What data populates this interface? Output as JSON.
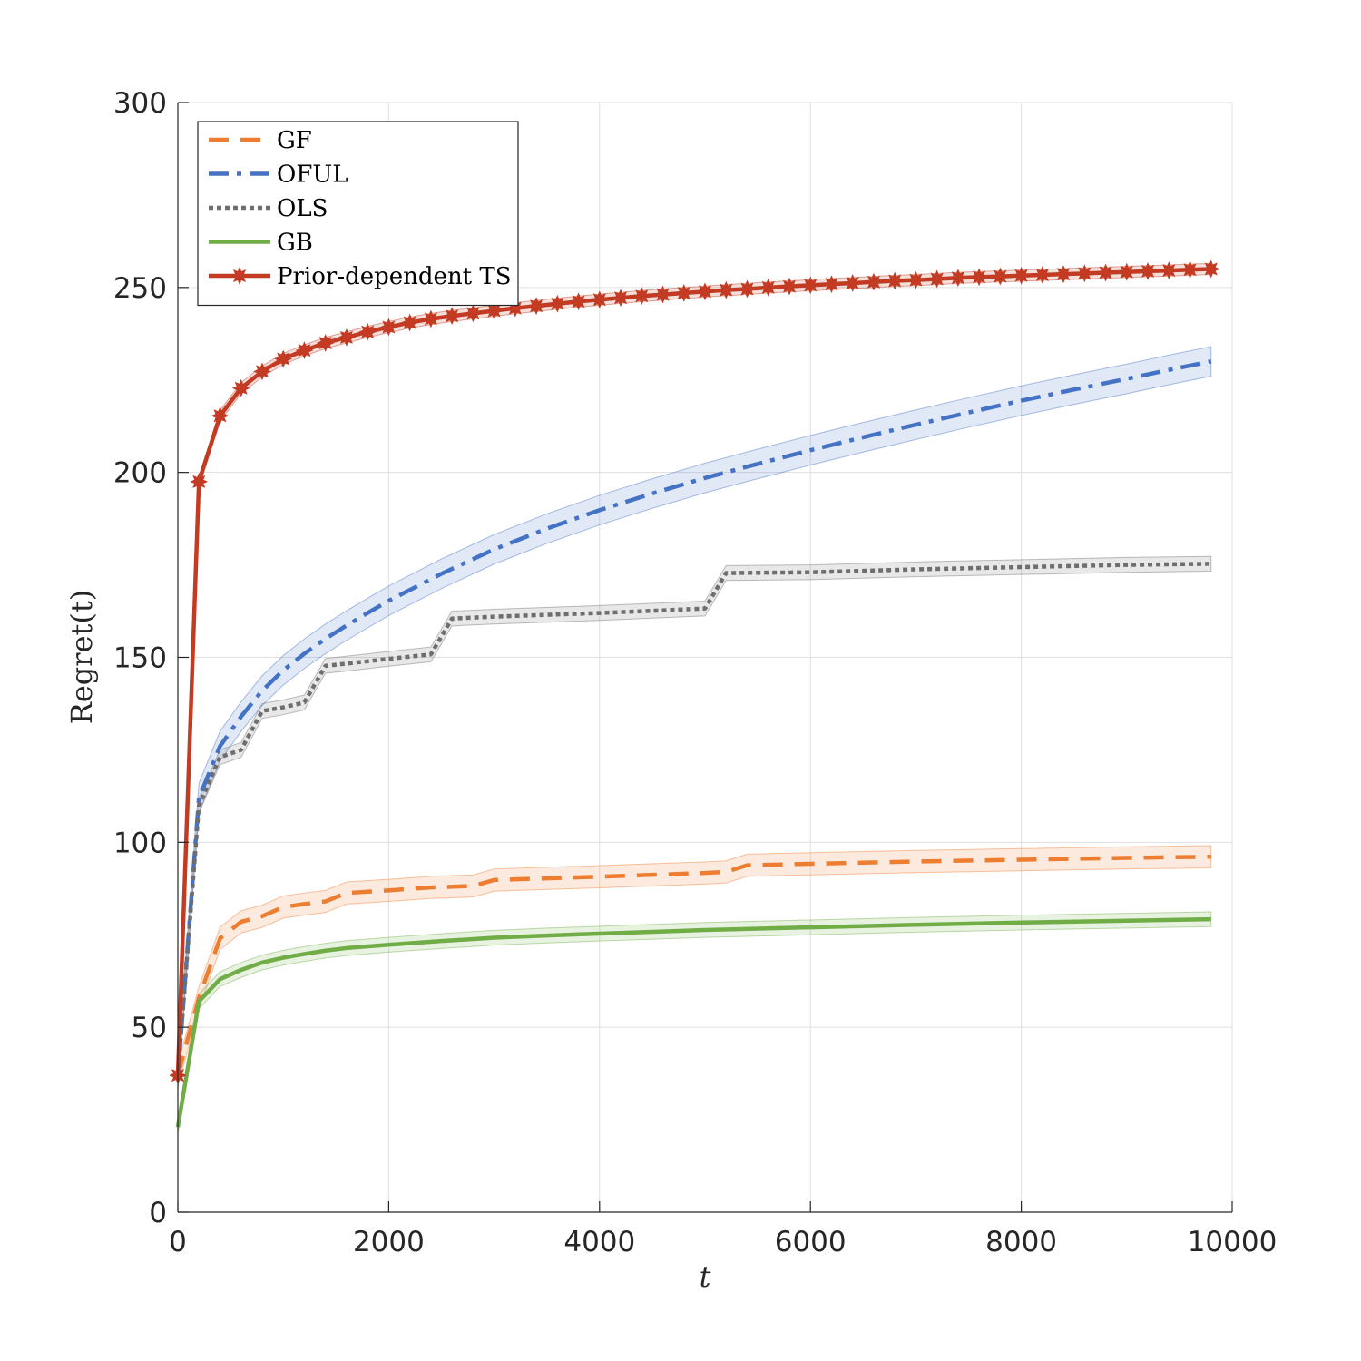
{
  "chart_data": {
    "type": "line",
    "title": "",
    "xlabel": "t",
    "ylabel": "Regret(t)",
    "xlim": [
      0,
      10000
    ],
    "ylim": [
      0,
      300
    ],
    "xticks": [
      0,
      2000,
      4000,
      6000,
      8000,
      10000
    ],
    "xtick_labels": [
      "0",
      "2000",
      "4000",
      "6000",
      "8000",
      "10000"
    ],
    "yticks": [
      0,
      50,
      100,
      150,
      200,
      250,
      300
    ],
    "ytick_labels": [
      "0",
      "50",
      "100",
      "150",
      "200",
      "250",
      "300"
    ],
    "grid": true,
    "legend_position": "top-left",
    "series": [
      {
        "name": "GF",
        "color": "#ED7D31",
        "line_style": "dashed",
        "marker": "none",
        "band": 3,
        "x": [
          0,
          200,
          400,
          600,
          800,
          1000,
          1200,
          1400,
          1600,
          2000,
          2400,
          2800,
          3000,
          4000,
          5000,
          5200,
          5400,
          6000,
          7000,
          8000,
          9000,
          9800
        ],
        "y": [
          37,
          58,
          74,
          78.5,
          80,
          82.5,
          83.3,
          84,
          86.3,
          87,
          87.8,
          88.2,
          89.8,
          90.7,
          91.7,
          92,
          93.8,
          94.2,
          94.8,
          95.3,
          95.8,
          96.1
        ]
      },
      {
        "name": "OFUL",
        "color": "#4472C4",
        "line_style": "dashdot",
        "marker": "none",
        "band": 4,
        "x": [
          0,
          200,
          400,
          600,
          800,
          1000,
          1200,
          1400,
          1600,
          1800,
          2000,
          2500,
          3000,
          3500,
          4000,
          4500,
          5000,
          5500,
          6000,
          6500,
          7000,
          7500,
          8000,
          8500,
          9000,
          9500,
          9800
        ],
        "y": [
          37,
          112,
          126,
          134,
          141,
          146.5,
          151,
          155,
          158.6,
          162,
          165.3,
          172.6,
          179.2,
          184.8,
          189.8,
          194.3,
          198.5,
          202.3,
          206,
          209.5,
          212.9,
          216.2,
          219.4,
          222.4,
          225.3,
          228.3,
          230
        ]
      },
      {
        "name": "OLS",
        "color": "#6E6E6E",
        "line_style": "dotted",
        "marker": "none",
        "band": 2,
        "x": [
          0,
          200,
          400,
          600,
          800,
          1000,
          1200,
          1400,
          1600,
          2000,
          2400,
          2600,
          3000,
          4000,
          5000,
          5200,
          6000,
          7000,
          8000,
          9000,
          9800
        ],
        "y": [
          37,
          110,
          123,
          125,
          135.5,
          136.5,
          137.8,
          147.7,
          148.3,
          149.6,
          150.8,
          160.5,
          161,
          162,
          163.2,
          172.8,
          173,
          173.8,
          174.4,
          175,
          175.3
        ]
      },
      {
        "name": "GB",
        "color": "#70AD47",
        "line_style": "solid",
        "marker": "none",
        "band": 2,
        "x": [
          0,
          200,
          400,
          600,
          800,
          1000,
          1200,
          1400,
          1600,
          2000,
          2500,
          3000,
          3500,
          4000,
          5000,
          6000,
          7000,
          8000,
          9000,
          9800
        ],
        "y": [
          23,
          57,
          63,
          65.5,
          67.5,
          68.8,
          69.8,
          70.7,
          71.4,
          72.3,
          73.3,
          74.2,
          74.8,
          75.3,
          76.3,
          77,
          77.7,
          78.3,
          78.8,
          79.2
        ]
      },
      {
        "name": "Prior-dependent TS",
        "color": "#C23B22",
        "line_style": "solid",
        "marker": "star",
        "band": 1.5,
        "x": [
          0,
          200,
          400,
          600,
          800,
          1000,
          1200,
          1400,
          1600,
          1800,
          2000,
          2200,
          2400,
          2600,
          2800,
          3000,
          3200,
          3400,
          3600,
          3800,
          4000,
          4200,
          4400,
          4600,
          4800,
          5000,
          5200,
          5400,
          5600,
          5800,
          6000,
          6200,
          6400,
          6600,
          6800,
          7000,
          7200,
          7400,
          7600,
          7800,
          8000,
          8200,
          8400,
          8600,
          8800,
          9000,
          9200,
          9400,
          9600,
          9800
        ],
        "y": [
          37,
          197.5,
          215.3,
          222.8,
          227.3,
          230.7,
          233,
          235,
          236.5,
          238,
          239.3,
          240.5,
          241.5,
          242.3,
          243,
          243.7,
          244.4,
          245,
          245.6,
          246.2,
          246.7,
          247.2,
          247.7,
          248.1,
          248.5,
          248.9,
          249.3,
          249.6,
          250,
          250.3,
          250.6,
          250.9,
          251.2,
          251.5,
          251.8,
          252,
          252.3,
          252.6,
          252.8,
          253,
          253.2,
          253.4,
          253.6,
          253.8,
          254,
          254.2,
          254.4,
          254.6,
          254.8,
          255
        ]
      }
    ]
  }
}
